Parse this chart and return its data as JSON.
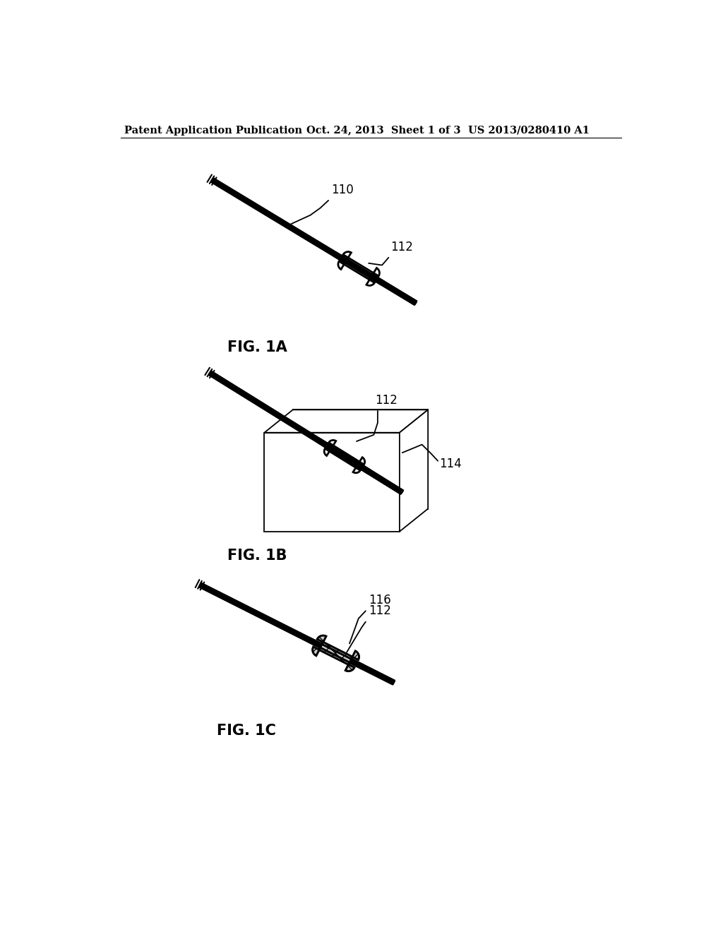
{
  "background_color": "#ffffff",
  "header_left": "Patent Application Publication",
  "header_middle": "Oct. 24, 2013  Sheet 1 of 3",
  "header_right": "US 2013/0280410 A1",
  "header_fontsize": 10.5,
  "fig1a_label": "FIG. 1A",
  "fig1b_label": "FIG. 1B",
  "fig1c_label": "FIG. 1C",
  "label_110": "110",
  "label_112a": "112",
  "label_112b": "112",
  "label_114": "114",
  "label_116": "116",
  "label_112c": "112",
  "line_color": "#000000"
}
